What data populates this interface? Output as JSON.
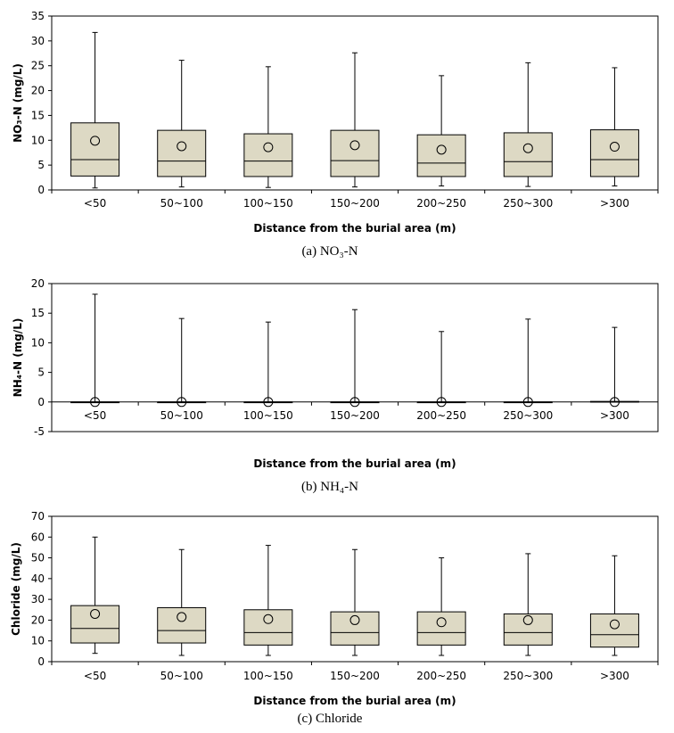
{
  "chart_data": [
    {
      "type": "box",
      "caption": "(a) NO₃-N",
      "xlabel": "Distance from the burial area (m)",
      "ylabel": "NO₃-N (mg/L)",
      "ylim": [
        0,
        35
      ],
      "ytick_step": 5,
      "categories": [
        "<50",
        "50~100",
        "100~150",
        "150~200",
        "200~250",
        "250~300",
        ">300"
      ],
      "box_fill": "#ddd9c4",
      "boxes": [
        {
          "min": 0.4,
          "q1": 2.8,
          "median": 6.1,
          "q3": 13.5,
          "max": 31.7,
          "mean": 9.9
        },
        {
          "min": 0.6,
          "q1": 2.7,
          "median": 5.8,
          "q3": 12.0,
          "max": 26.1,
          "mean": 8.8
        },
        {
          "min": 0.5,
          "q1": 2.7,
          "median": 5.8,
          "q3": 11.3,
          "max": 24.8,
          "mean": 8.6
        },
        {
          "min": 0.6,
          "q1": 2.7,
          "median": 5.9,
          "q3": 12.0,
          "max": 27.6,
          "mean": 9.0
        },
        {
          "min": 0.8,
          "q1": 2.7,
          "median": 5.4,
          "q3": 11.1,
          "max": 23.0,
          "mean": 8.1
        },
        {
          "min": 0.7,
          "q1": 2.7,
          "median": 5.7,
          "q3": 11.5,
          "max": 25.6,
          "mean": 8.4
        },
        {
          "min": 0.8,
          "q1": 2.7,
          "median": 6.1,
          "q3": 12.1,
          "max": 24.6,
          "mean": 8.7
        }
      ]
    },
    {
      "type": "box",
      "caption": "(b) NH₄-N",
      "xlabel": "Distance from the burial area (m)",
      "ylabel": "NH₄-N (mg/L)",
      "ylim": [
        -5,
        20
      ],
      "ytick_step": 5,
      "categories": [
        "<50",
        "50~100",
        "100~150",
        "150~200",
        "200~250",
        "250~300",
        ">300"
      ],
      "box_fill": "#ddd9c4",
      "boxes": [
        {
          "min": 0,
          "q1": 0,
          "median": 0,
          "q3": 0,
          "max": 18.2,
          "mean": 0
        },
        {
          "min": 0,
          "q1": 0,
          "median": 0,
          "q3": 0,
          "max": 14.1,
          "mean": 0
        },
        {
          "min": 0,
          "q1": 0,
          "median": 0,
          "q3": 0,
          "max": 13.5,
          "mean": 0
        },
        {
          "min": 0,
          "q1": 0,
          "median": 0,
          "q3": 0,
          "max": 15.6,
          "mean": 0
        },
        {
          "min": 0,
          "q1": 0,
          "median": 0,
          "q3": 0,
          "max": 11.9,
          "mean": 0
        },
        {
          "min": 0,
          "q1": 0,
          "median": 0,
          "q3": 0,
          "max": 14.0,
          "mean": 0
        },
        {
          "min": 0,
          "q1": 0,
          "median": 0,
          "q3": 0.1,
          "max": 12.6,
          "mean": 0
        }
      ]
    },
    {
      "type": "box",
      "caption": "(c) Chloride",
      "xlabel": "Distance from the burial area (m)",
      "ylabel": "Chloride (mg/L)",
      "ylim": [
        0,
        70
      ],
      "ytick_step": 10,
      "categories": [
        "<50",
        "50~100",
        "100~150",
        "150~200",
        "200~250",
        "250~300",
        ">300"
      ],
      "box_fill": "#ddd9c4",
      "boxes": [
        {
          "min": 4,
          "q1": 9,
          "median": 16,
          "q3": 27,
          "max": 60,
          "mean": 23
        },
        {
          "min": 3,
          "q1": 9,
          "median": 15,
          "q3": 26,
          "max": 54,
          "mean": 21.5
        },
        {
          "min": 3,
          "q1": 8,
          "median": 14,
          "q3": 25,
          "max": 56,
          "mean": 20.5
        },
        {
          "min": 3,
          "q1": 8,
          "median": 14,
          "q3": 24,
          "max": 54,
          "mean": 20
        },
        {
          "min": 3,
          "q1": 8,
          "median": 14,
          "q3": 24,
          "max": 50,
          "mean": 19
        },
        {
          "min": 3,
          "q1": 8,
          "median": 14,
          "q3": 23,
          "max": 52,
          "mean": 20
        },
        {
          "min": 3,
          "q1": 7,
          "median": 13,
          "q3": 23,
          "max": 51,
          "mean": 18
        }
      ]
    }
  ]
}
